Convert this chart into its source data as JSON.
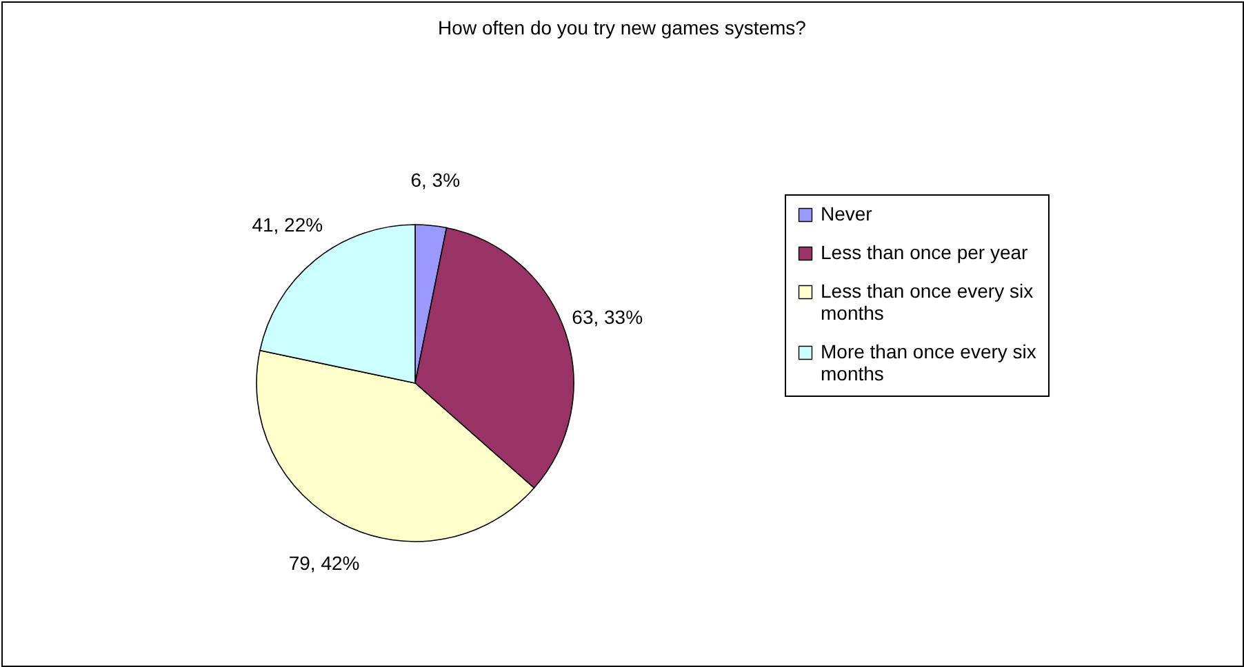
{
  "chart_data": {
    "type": "pie",
    "title": "How often do you try new games systems?",
    "categories": [
      "Never",
      "Less than once per year",
      "Less than once every six months",
      "More than once every six months"
    ],
    "values": [
      6,
      63,
      79,
      41
    ],
    "colors": [
      "#9999ff",
      "#993366",
      "#ffffcc",
      "#ccffff"
    ],
    "value_labels": [
      "6, 3%",
      "63, 33%",
      "79, 42%",
      "41, 22%"
    ],
    "legend": "right"
  }
}
